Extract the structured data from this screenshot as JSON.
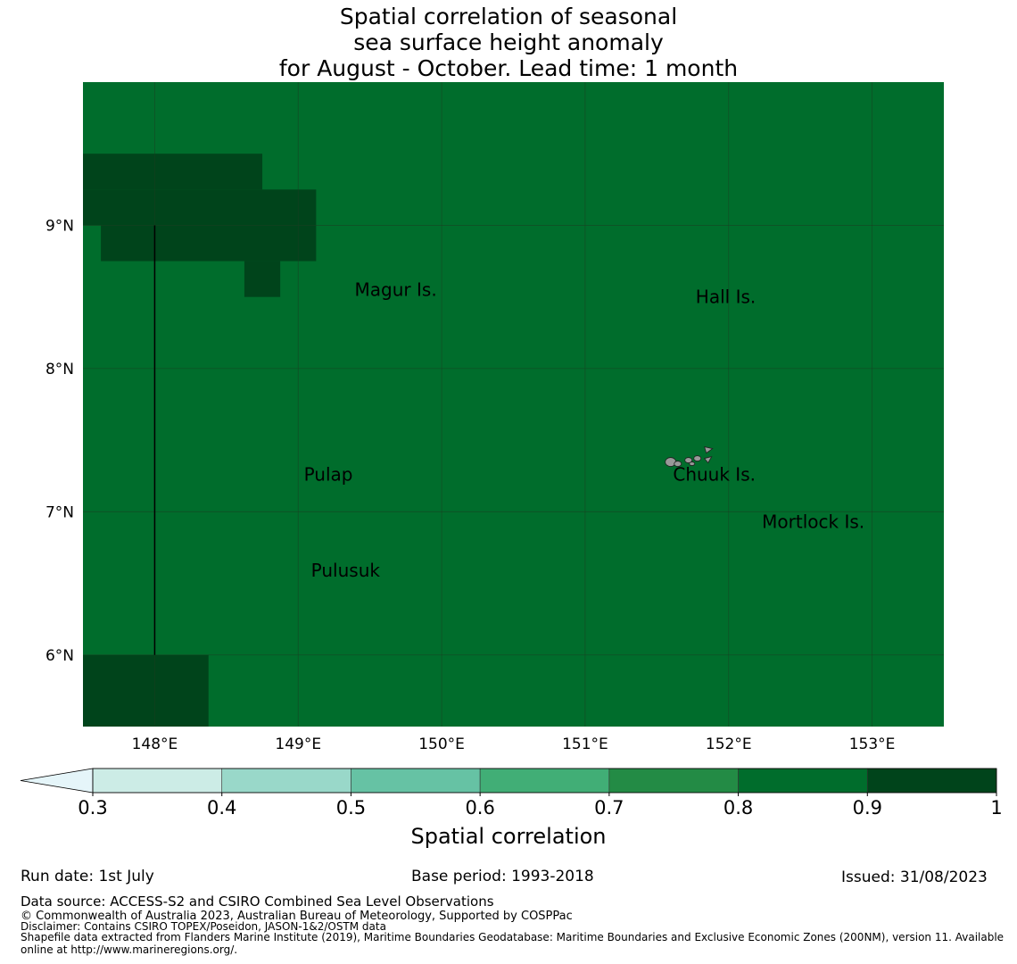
{
  "title": {
    "line1": "Spatial correlation of seasonal",
    "line2": "sea surface height anomaly",
    "line3": "for August - October. Lead time: 1 month"
  },
  "map": {
    "lon_range": [
      147.5,
      153.5
    ],
    "lat_range": [
      5.5,
      10.0
    ],
    "background_value": 0.85,
    "cell_size_deg": 0.25,
    "lon_ticks": [
      "148°E",
      "149°E",
      "150°E",
      "151°E",
      "152°E",
      "153°E"
    ],
    "lat_ticks": [
      "9°N",
      "8°N",
      "7°N",
      "6°N"
    ],
    "high_regions": [
      {
        "value": 0.95,
        "lon": [
          147.5,
          148.75
        ],
        "lat": [
          9.25,
          9.5
        ]
      },
      {
        "value": 0.95,
        "lon": [
          147.5,
          149.125
        ],
        "lat": [
          9.0,
          9.25
        ]
      },
      {
        "value": 0.95,
        "lon": [
          147.625,
          149.125
        ],
        "lat": [
          8.75,
          9.0
        ]
      },
      {
        "value": 0.95,
        "lon": [
          148.625,
          148.875
        ],
        "lat": [
          8.5,
          8.75
        ]
      },
      {
        "value": 0.95,
        "lon": [
          147.5,
          148.375
        ],
        "lat": [
          5.5,
          6.0
        ]
      }
    ],
    "meridian_line": {
      "lon": 148.0,
      "lat": [
        6.0,
        9.0
      ]
    },
    "places": [
      {
        "name": "Magur Is.",
        "lon": 149.68,
        "lat": 8.55
      },
      {
        "name": "Hall Is.",
        "lon": 151.98,
        "lat": 8.5
      },
      {
        "name": "Pulap",
        "lon": 149.21,
        "lat": 7.26
      },
      {
        "name": "Chuuk Is.",
        "lon": 151.9,
        "lat": 7.26
      },
      {
        "name": "Mortlock Is.",
        "lon": 152.59,
        "lat": 6.93
      },
      {
        "name": "Pulusuk",
        "lon": 149.33,
        "lat": 6.59
      }
    ]
  },
  "colorbar": {
    "label": "Spatial correlation",
    "ticks": [
      "0.3",
      "0.4",
      "0.5",
      "0.6",
      "0.7",
      "0.8",
      "0.9",
      "1"
    ],
    "extend_color": "#e5f5f9",
    "colors": [
      "#ccece6",
      "#99d8c9",
      "#66c2a4",
      "#41ae76",
      "#238b45",
      "#006d2c",
      "#00441b"
    ]
  },
  "footer": {
    "run_date": "Run date: 1st July",
    "base_period": "Base period: 1993-2018",
    "issued": "Issued: 31/08/2023",
    "data_source": "Data source: ACCESS-S2 and CSIRO Combined Sea Level Observations",
    "copyright": "© Commonwealth of Australia 2023, Australian Bureau of Meteorology, Supported by COSPPac",
    "disclaimer": "Disclaimer: Contains CSIRO TOPEX/Poseidon, JASON-1&2/OSTM data",
    "shapefile_line1": "Shapefile data extracted from Flanders Marine Institute (2019), Maritime Boundaries Geodatabase: Maritime Boundaries and Exclusive Economic Zones (200NM), version 11. Available",
    "shapefile_line2": "online at http://www.marineregions.org/."
  }
}
